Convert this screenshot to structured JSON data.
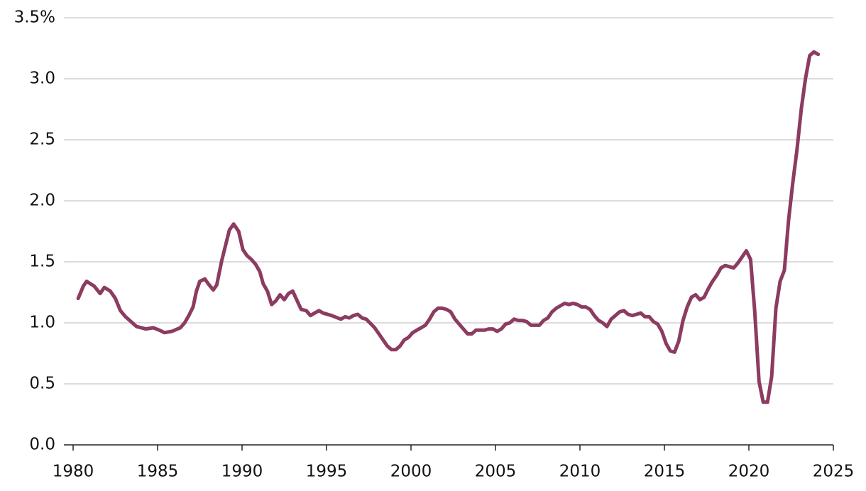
{
  "chart_data": {
    "type": "line",
    "x": [
      1980.3,
      1980.6,
      1980.8,
      1981.25,
      1981.6,
      1981.85,
      1982.2,
      1982.5,
      1982.8,
      1983.1,
      1983.35,
      1983.75,
      1984.3,
      1984.75,
      1985.1,
      1985.4,
      1985.85,
      1986.35,
      1986.6,
      1986.85,
      1987.1,
      1987.3,
      1987.5,
      1987.8,
      1988.0,
      1988.3,
      1988.5,
      1988.8,
      1989.25,
      1989.5,
      1989.8,
      1990.05,
      1990.3,
      1990.55,
      1990.8,
      1991.05,
      1991.25,
      1991.5,
      1991.75,
      1992.0,
      1992.25,
      1992.5,
      1992.75,
      1993.0,
      1993.3,
      1993.5,
      1993.8,
      1994.05,
      1994.3,
      1994.55,
      1994.8,
      1995.3,
      1995.85,
      1996.1,
      1996.35,
      1996.6,
      1996.85,
      1997.1,
      1997.35,
      1997.85,
      1998.1,
      1998.35,
      1998.6,
      1998.85,
      1999.1,
      1999.35,
      1999.6,
      1999.85,
      2000.1,
      2000.35,
      2000.6,
      2000.85,
      2001.1,
      2001.35,
      2001.6,
      2001.85,
      2002.1,
      2002.35,
      2002.6,
      2002.85,
      2003.1,
      2003.35,
      2003.6,
      2003.85,
      2004.1,
      2004.35,
      2004.6,
      2004.85,
      2005.1,
      2005.35,
      2005.6,
      2005.85,
      2006.1,
      2006.35,
      2006.6,
      2006.85,
      2007.1,
      2007.35,
      2007.6,
      2007.85,
      2008.1,
      2008.35,
      2008.6,
      2008.85,
      2009.1,
      2009.35,
      2009.6,
      2009.85,
      2010.1,
      2010.35,
      2010.6,
      2010.85,
      2011.1,
      2011.35,
      2011.6,
      2011.85,
      2012.1,
      2012.35,
      2012.6,
      2012.85,
      2013.1,
      2013.35,
      2013.6,
      2013.85,
      2014.1,
      2014.35,
      2014.6,
      2014.85,
      2015.1,
      2015.35,
      2015.6,
      2015.85,
      2016.1,
      2016.35,
      2016.6,
      2016.85,
      2017.1,
      2017.35,
      2017.6,
      2017.85,
      2018.1,
      2018.35,
      2018.6,
      2019.1,
      2019.35,
      2019.6,
      2019.85,
      2020.1,
      2020.35,
      2020.6,
      2020.85,
      2021.1,
      2021.35,
      2021.6,
      2021.85,
      2022.1,
      2022.35,
      2022.6,
      2022.85,
      2023.1,
      2023.35,
      2023.6,
      2023.85,
      2024.1
    ],
    "values": [
      1.2,
      1.3,
      1.34,
      1.3,
      1.24,
      1.29,
      1.26,
      1.2,
      1.1,
      1.05,
      1.02,
      0.97,
      0.95,
      0.96,
      0.94,
      0.92,
      0.93,
      0.96,
      1.0,
      1.06,
      1.13,
      1.26,
      1.34,
      1.36,
      1.32,
      1.27,
      1.31,
      1.51,
      1.76,
      1.81,
      1.75,
      1.6,
      1.55,
      1.52,
      1.48,
      1.42,
      1.32,
      1.26,
      1.15,
      1.18,
      1.23,
      1.19,
      1.24,
      1.26,
      1.17,
      1.11,
      1.1,
      1.06,
      1.08,
      1.1,
      1.08,
      1.06,
      1.03,
      1.05,
      1.04,
      1.06,
      1.07,
      1.04,
      1.03,
      0.96,
      0.91,
      0.86,
      0.81,
      0.78,
      0.78,
      0.81,
      0.86,
      0.88,
      0.92,
      0.94,
      0.96,
      0.98,
      1.03,
      1.09,
      1.12,
      1.12,
      1.11,
      1.09,
      1.03,
      0.99,
      0.95,
      0.91,
      0.91,
      0.94,
      0.94,
      0.94,
      0.95,
      0.95,
      0.93,
      0.95,
      0.99,
      1.0,
      1.03,
      1.02,
      1.02,
      1.01,
      0.98,
      0.98,
      0.98,
      1.02,
      1.04,
      1.09,
      1.12,
      1.14,
      1.16,
      1.15,
      1.16,
      1.15,
      1.13,
      1.13,
      1.11,
      1.06,
      1.02,
      1.0,
      0.97,
      1.03,
      1.06,
      1.09,
      1.1,
      1.07,
      1.06,
      1.07,
      1.08,
      1.05,
      1.05,
      1.01,
      0.99,
      0.93,
      0.83,
      0.77,
      0.76,
      0.85,
      1.02,
      1.13,
      1.21,
      1.23,
      1.19,
      1.21,
      1.28,
      1.34,
      1.39,
      1.45,
      1.47,
      1.45,
      1.49,
      1.54,
      1.59,
      1.52,
      1.09,
      0.52,
      0.35,
      0.35,
      0.56,
      1.12,
      1.34,
      1.43,
      1.84,
      2.15,
      2.42,
      2.75,
      3.0,
      3.19,
      3.22,
      3.2
    ],
    "color": "#8c3b61",
    "xlim": [
      1980,
      2025
    ],
    "xticks": [
      1980,
      1985,
      1990,
      1995,
      2000,
      2005,
      2010,
      2015,
      2020,
      2025
    ],
    "ylim": [
      0,
      3.5
    ],
    "yticks": [
      {
        "value": 0,
        "label": "0.0"
      },
      0.5,
      {
        "value": 1,
        "label": "1.0"
      },
      1.5,
      {
        "value": 2,
        "label": "2.0"
      },
      2.5,
      {
        "value": 3,
        "label": "3.0"
      },
      {
        "value": 3.5,
        "label": "3.5%"
      }
    ],
    "grid": true
  }
}
